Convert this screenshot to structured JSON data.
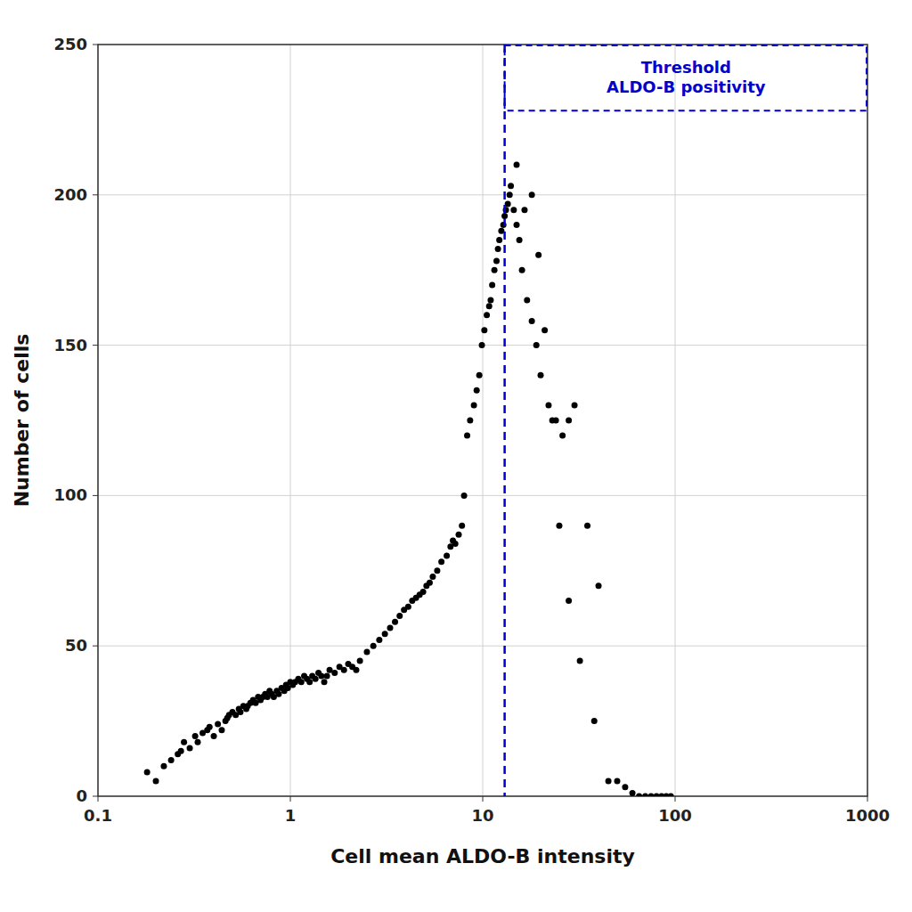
{
  "chart_data": {
    "type": "scatter",
    "xlabel": "Cell mean ALDO-B intensity",
    "ylabel": "Number of cells",
    "log": "x",
    "grid": true,
    "color": "#000000",
    "xlim": [
      0.1,
      1000
    ],
    "ylim": [
      0,
      250
    ],
    "xticks": [
      0.1,
      1,
      10,
      100,
      1000
    ],
    "yticks": [
      0,
      50,
      100,
      150,
      200,
      250
    ],
    "x": [
      0.18,
      0.2,
      0.22,
      0.24,
      0.26,
      0.27,
      0.28,
      0.3,
      0.32,
      0.33,
      0.35,
      0.37,
      0.38,
      0.4,
      0.42,
      0.44,
      0.46,
      0.47,
      0.48,
      0.5,
      0.52,
      0.54,
      0.55,
      0.57,
      0.59,
      0.6,
      0.62,
      0.64,
      0.66,
      0.68,
      0.7,
      0.72,
      0.74,
      0.76,
      0.78,
      0.8,
      0.82,
      0.85,
      0.87,
      0.9,
      0.93,
      0.95,
      0.97,
      1.0,
      1.03,
      1.06,
      1.1,
      1.14,
      1.18,
      1.22,
      1.26,
      1.3,
      1.35,
      1.4,
      1.45,
      1.5,
      1.55,
      1.6,
      1.7,
      1.8,
      1.9,
      2.0,
      2.1,
      2.2,
      2.3,
      2.5,
      2.7,
      2.9,
      3.1,
      3.3,
      3.5,
      3.7,
      3.9,
      4.1,
      4.3,
      4.5,
      4.7,
      4.9,
      5.1,
      5.3,
      5.5,
      5.8,
      6.1,
      6.5,
      6.8,
      7.0,
      7.2,
      7.5,
      7.8,
      8.0,
      8.3,
      8.6,
      9.0,
      9.3,
      9.6,
      9.9,
      10.2,
      10.5,
      10.8,
      11.0,
      11.2,
      11.5,
      11.8,
      12.0,
      12.2,
      12.5,
      12.8,
      13.0,
      13.2,
      13.5,
      13.8,
      14.0,
      14.5,
      15.0,
      15.5,
      16.0,
      17.0,
      18.0,
      19.0,
      20.0,
      22.0,
      24.0,
      26.0,
      28.0,
      30.0,
      35.0,
      40.0,
      50.0,
      55.0,
      60.0,
      65.0,
      70.0,
      75.0,
      80.0,
      85.0,
      90.0,
      95.0,
      15.0,
      16.5,
      18.0,
      19.5,
      21.0,
      23.0,
      25.0,
      28.0,
      32.0,
      38.0,
      45.0
    ],
    "values": [
      8,
      5,
      10,
      12,
      14,
      15,
      18,
      16,
      20,
      18,
      21,
      22,
      23,
      20,
      24,
      22,
      25,
      26,
      27,
      28,
      27,
      29,
      28,
      30,
      29,
      30,
      31,
      32,
      31,
      33,
      32,
      33,
      34,
      33,
      35,
      34,
      33,
      35,
      34,
      36,
      35,
      37,
      36,
      38,
      37,
      38,
      39,
      38,
      40,
      39,
      38,
      40,
      39,
      41,
      40,
      38,
      40,
      42,
      41,
      43,
      42,
      44,
      43,
      42,
      45,
      48,
      50,
      52,
      54,
      56,
      58,
      60,
      62,
      63,
      65,
      66,
      67,
      68,
      70,
      71,
      73,
      75,
      78,
      80,
      83,
      85,
      84,
      87,
      90,
      100,
      120,
      125,
      130,
      135,
      140,
      150,
      155,
      160,
      163,
      165,
      170,
      175,
      178,
      182,
      185,
      188,
      190,
      193,
      195,
      197,
      200,
      203,
      195,
      190,
      185,
      175,
      165,
      158,
      150,
      140,
      130,
      125,
      120,
      125,
      130,
      90,
      70,
      5,
      3,
      1,
      0,
      0,
      0,
      0,
      0,
      0,
      0,
      210,
      195,
      200,
      180,
      155,
      125,
      90,
      65,
      45,
      25,
      5
    ],
    "threshold_x": 13.0,
    "annotation": {
      "text": "Threshold\nALDO-B positivity",
      "color": "#0000CC",
      "box_bottom": 228
    }
  }
}
